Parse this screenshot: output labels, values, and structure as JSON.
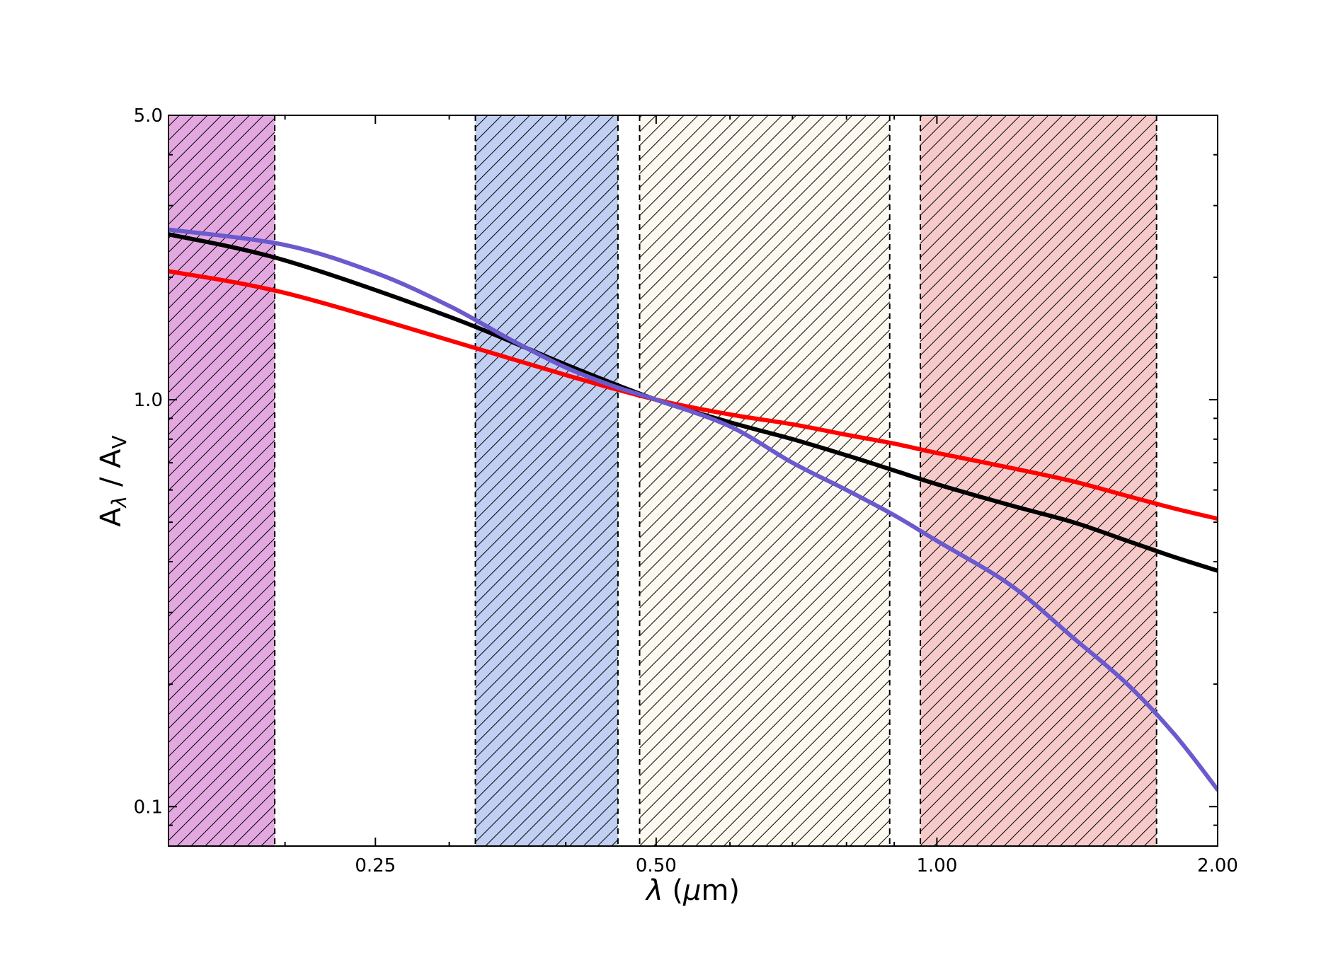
{
  "chart_data": {
    "type": "line",
    "xlabel": "λ (μm)",
    "ylabel": "Aλ / AV",
    "x_scale": "log",
    "y_scale": "log",
    "xlim": [
      0.15,
      2.0
    ],
    "ylim": [
      0.08,
      5.0
    ],
    "grid": false,
    "x_ticks": [
      {
        "value": 0.25,
        "label": "0.25"
      },
      {
        "value": 0.5,
        "label": "0.50"
      },
      {
        "value": 1.0,
        "label": "1.00"
      },
      {
        "value": 2.0,
        "label": "2.00"
      }
    ],
    "y_ticks": [
      {
        "value": 0.1,
        "label": "0.1"
      },
      {
        "value": 1.0,
        "label": "1.0"
      },
      {
        "value": 5.0,
        "label": "5.0"
      }
    ],
    "bands": [
      {
        "x_range": [
          0.15,
          0.195
        ],
        "color": "#e3a8e0"
      },
      {
        "x_range": [
          0.32,
          0.455
        ],
        "color": "#c0cff2"
      },
      {
        "x_range": [
          0.48,
          0.89
        ],
        "color": "#fdf9f0"
      },
      {
        "x_range": [
          0.96,
          1.72
        ],
        "color": "#f7caca"
      }
    ],
    "series": [
      {
        "color": "#000000",
        "x": [
          0.15,
          0.2,
          0.3,
          0.4,
          0.5,
          0.6,
          0.7,
          0.8,
          0.9,
          1.0,
          1.2,
          1.4,
          1.6,
          1.8,
          2.0
        ],
        "y": [
          2.55,
          2.2,
          1.6,
          1.22,
          1.0,
          0.88,
          0.8,
          0.73,
          0.67,
          0.62,
          0.55,
          0.5,
          0.45,
          0.41,
          0.38
        ]
      },
      {
        "color": "#ff0000",
        "x": [
          0.15,
          0.2,
          0.3,
          0.4,
          0.5,
          0.6,
          0.7,
          0.8,
          0.9,
          1.0,
          1.2,
          1.4,
          1.6,
          1.8,
          2.0
        ],
        "y": [
          2.07,
          1.83,
          1.4,
          1.15,
          1.0,
          0.92,
          0.87,
          0.82,
          0.78,
          0.74,
          0.68,
          0.63,
          0.58,
          0.54,
          0.51
        ]
      },
      {
        "color": "#6a5acd",
        "x": [
          0.15,
          0.2,
          0.25,
          0.3,
          0.35,
          0.4,
          0.45,
          0.5,
          0.6,
          0.7,
          0.8,
          0.9,
          1.0,
          1.2,
          1.4,
          1.6,
          1.8,
          2.0
        ],
        "y": [
          2.62,
          2.4,
          2.05,
          1.7,
          1.4,
          1.2,
          1.08,
          1.0,
          0.86,
          0.7,
          0.6,
          0.52,
          0.45,
          0.35,
          0.26,
          0.2,
          0.15,
          0.11
        ]
      }
    ]
  }
}
